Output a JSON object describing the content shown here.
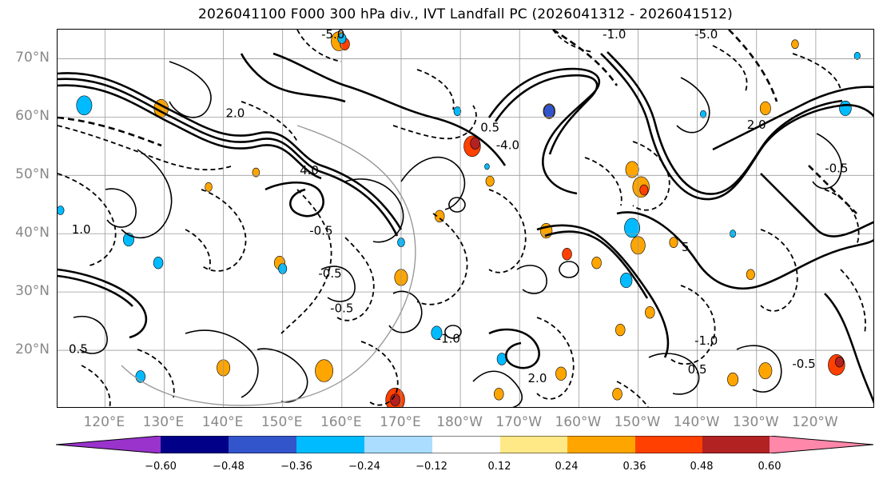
{
  "title": "2026041100 F000 300 hPa div., IVT Landfall PC (2026041312 - 2026041512)",
  "map": {
    "projection": "PlateCarree",
    "lon_range": [
      112,
      250
    ],
    "lat_range": [
      10,
      75
    ],
    "lat_labels": [
      {
        "lat": 70,
        "text": "70°N"
      },
      {
        "lat": 60,
        "text": "60°N"
      },
      {
        "lat": 50,
        "text": "50°N"
      },
      {
        "lat": 40,
        "text": "40°N"
      },
      {
        "lat": 30,
        "text": "30°N"
      },
      {
        "lat": 20,
        "text": "20°N"
      }
    ],
    "lon_labels": [
      {
        "lon": 120,
        "text": "120°E"
      },
      {
        "lon": 130,
        "text": "130°E"
      },
      {
        "lon": 140,
        "text": "140°E"
      },
      {
        "lon": 150,
        "text": "150°E"
      },
      {
        "lon": 160,
        "text": "160°E"
      },
      {
        "lon": 170,
        "text": "170°E"
      },
      {
        "lon": 180,
        "text": "180°W"
      },
      {
        "lon": 190,
        "text": "170°W"
      },
      {
        "lon": 200,
        "text": "160°W"
      },
      {
        "lon": 210,
        "text": "150°W"
      },
      {
        "lon": 220,
        "text": "140°W"
      },
      {
        "lon": 230,
        "text": "130°W"
      },
      {
        "lon": 240,
        "text": "120°W"
      }
    ],
    "grid_lons": [
      120,
      130,
      140,
      150,
      160,
      170,
      180,
      190,
      200,
      210,
      220,
      230,
      240
    ],
    "grid_lats": [
      20,
      30,
      40,
      50,
      60,
      70
    ],
    "contour_labels": [
      {
        "lon": 158.5,
        "lat": 73.5,
        "text": "-5.0"
      },
      {
        "lon": 154.5,
        "lat": 50.2,
        "text": "4.0"
      },
      {
        "lon": 158,
        "lat": 32.5,
        "text": "-0.5"
      },
      {
        "lon": 160,
        "lat": 26.5,
        "text": "-0.5"
      },
      {
        "lon": 156.5,
        "lat": 39.8,
        "text": "-0.5"
      },
      {
        "lon": 185,
        "lat": 57.5,
        "text": "0.5"
      },
      {
        "lon": 188,
        "lat": 54.5,
        "text": "-4.0"
      },
      {
        "lon": 193,
        "lat": 14.5,
        "text": "2.0"
      },
      {
        "lon": 178,
        "lat": 21.3,
        "text": "-1.0"
      },
      {
        "lon": 221.5,
        "lat": 21,
        "text": "-1.0"
      },
      {
        "lon": 220,
        "lat": 16,
        "text": "0.5"
      },
      {
        "lon": 221.5,
        "lat": 73.5,
        "text": "-5.0"
      },
      {
        "lon": 243.5,
        "lat": 50.5,
        "text": "-0.5"
      },
      {
        "lon": 115.5,
        "lat": 19.5,
        "text": "0.5"
      },
      {
        "lon": 116,
        "lat": 40,
        "text": "1.0"
      },
      {
        "lon": 206,
        "lat": 73.5,
        "text": "-1.0"
      },
      {
        "lon": 238,
        "lat": 17,
        "text": "-0.5"
      },
      {
        "lon": 218,
        "lat": 37,
        "text": "5"
      },
      {
        "lon": 142,
        "lat": 60,
        "text": "2.0"
      },
      {
        "lon": 230,
        "lat": 58,
        "text": "2.0"
      }
    ],
    "warm_blobs": [
      {
        "lon": 129.5,
        "lat": 61.5,
        "r": 1.2,
        "value": 0.3
      },
      {
        "lon": 159.5,
        "lat": 73.0,
        "r": 1.3,
        "value": 0.32
      },
      {
        "lon": 160.5,
        "lat": 72.5,
        "r": 0.8,
        "value": 0.42
      },
      {
        "lon": 182.0,
        "lat": 55.0,
        "r": 1.4,
        "value": 0.38
      },
      {
        "lon": 182.5,
        "lat": 55.5,
        "r": 0.8,
        "value": 0.5
      },
      {
        "lon": 195.0,
        "lat": 61.0,
        "r": 1.0,
        "value": 0.3
      },
      {
        "lon": 209.0,
        "lat": 51.0,
        "r": 1.1,
        "value": 0.34
      },
      {
        "lon": 210.5,
        "lat": 48.0,
        "r": 1.4,
        "value": 0.3
      },
      {
        "lon": 211.0,
        "lat": 47.5,
        "r": 0.7,
        "value": 0.44
      },
      {
        "lon": 176.5,
        "lat": 43.0,
        "r": 0.8,
        "value": 0.26
      },
      {
        "lon": 194.5,
        "lat": 40.5,
        "r": 1.0,
        "value": 0.32
      },
      {
        "lon": 198.0,
        "lat": 36.5,
        "r": 0.8,
        "value": 0.36
      },
      {
        "lon": 203.0,
        "lat": 35.0,
        "r": 0.8,
        "value": 0.28
      },
      {
        "lon": 210.0,
        "lat": 38.0,
        "r": 1.2,
        "value": 0.3
      },
      {
        "lon": 216.0,
        "lat": 38.5,
        "r": 0.7,
        "value": 0.28
      },
      {
        "lon": 170.0,
        "lat": 32.5,
        "r": 1.1,
        "value": 0.3
      },
      {
        "lon": 185.0,
        "lat": 49.0,
        "r": 0.7,
        "value": 0.26
      },
      {
        "lon": 149.5,
        "lat": 35.0,
        "r": 0.9,
        "value": 0.26
      },
      {
        "lon": 157.0,
        "lat": 16.5,
        "r": 1.5,
        "value": 0.34
      },
      {
        "lon": 169.0,
        "lat": 11.5,
        "r": 1.6,
        "value": 0.4
      },
      {
        "lon": 169.0,
        "lat": 11.5,
        "r": 0.8,
        "value": 0.52
      },
      {
        "lon": 140.0,
        "lat": 17.0,
        "r": 1.1,
        "value": 0.32
      },
      {
        "lon": 186.5,
        "lat": 12.5,
        "r": 0.8,
        "value": 0.26
      },
      {
        "lon": 197.0,
        "lat": 16.0,
        "r": 0.9,
        "value": 0.3
      },
      {
        "lon": 206.5,
        "lat": 12.5,
        "r": 0.8,
        "value": 0.28
      },
      {
        "lon": 207.0,
        "lat": 23.5,
        "r": 0.8,
        "value": 0.26
      },
      {
        "lon": 226.0,
        "lat": 15.0,
        "r": 0.9,
        "value": 0.3
      },
      {
        "lon": 231.5,
        "lat": 16.5,
        "r": 1.1,
        "value": 0.34
      },
      {
        "lon": 243.5,
        "lat": 17.5,
        "r": 1.4,
        "value": 0.4
      },
      {
        "lon": 244.0,
        "lat": 18.0,
        "r": 0.7,
        "value": 0.5
      },
      {
        "lon": 229.0,
        "lat": 33.0,
        "r": 0.7,
        "value": 0.28
      },
      {
        "lon": 231.5,
        "lat": 61.5,
        "r": 0.9,
        "value": 0.3
      },
      {
        "lon": 236.5,
        "lat": 72.5,
        "r": 0.6,
        "value": 0.28
      },
      {
        "lon": 137.5,
        "lat": 48.0,
        "r": 0.6,
        "value": 0.28
      },
      {
        "lon": 145.5,
        "lat": 50.5,
        "r": 0.6,
        "value": 0.26
      },
      {
        "lon": 212.0,
        "lat": 26.5,
        "r": 0.8,
        "value": 0.3
      }
    ],
    "cold_blobs": [
      {
        "lon": 116.5,
        "lat": 62.0,
        "r": 1.3,
        "value": -0.3
      },
      {
        "lon": 195.0,
        "lat": 61.0,
        "r": 0.9,
        "value": -0.4
      },
      {
        "lon": 179.5,
        "lat": 61.0,
        "r": 0.6,
        "value": -0.3
      },
      {
        "lon": 209.0,
        "lat": 41.0,
        "r": 1.3,
        "value": -0.3
      },
      {
        "lon": 208.0,
        "lat": 32.0,
        "r": 1.0,
        "value": -0.3
      },
      {
        "lon": 170.0,
        "lat": 38.5,
        "r": 0.6,
        "value": -0.28
      },
      {
        "lon": 176.0,
        "lat": 23.0,
        "r": 0.9,
        "value": -0.3
      },
      {
        "lon": 187.0,
        "lat": 18.5,
        "r": 0.8,
        "value": -0.3
      },
      {
        "lon": 124.0,
        "lat": 39.0,
        "r": 0.9,
        "value": -0.3
      },
      {
        "lon": 150.0,
        "lat": 34.0,
        "r": 0.7,
        "value": -0.28
      },
      {
        "lon": 129.0,
        "lat": 35.0,
        "r": 0.8,
        "value": -0.3
      },
      {
        "lon": 126.0,
        "lat": 15.5,
        "r": 0.8,
        "value": -0.3
      },
      {
        "lon": 160.0,
        "lat": 73.5,
        "r": 0.7,
        "value": -0.26
      },
      {
        "lon": 245.0,
        "lat": 61.5,
        "r": 1.0,
        "value": -0.3
      },
      {
        "lon": 112.5,
        "lat": 44.0,
        "r": 0.6,
        "value": -0.28
      },
      {
        "lon": 221.0,
        "lat": 60.5,
        "r": 0.5,
        "value": -0.3
      },
      {
        "lon": 226.0,
        "lat": 40.0,
        "r": 0.5,
        "value": -0.28
      },
      {
        "lon": 184.5,
        "lat": 51.5,
        "r": 0.4,
        "value": -0.26
      },
      {
        "lon": 247.0,
        "lat": 70.5,
        "r": 0.5,
        "value": -0.28
      }
    ]
  },
  "colorbar": {
    "levels": [
      -0.72,
      -0.6,
      -0.48,
      -0.36,
      -0.24,
      -0.12,
      0.12,
      0.24,
      0.36,
      0.48,
      0.6,
      0.72
    ],
    "colors": [
      "#9933cc",
      "#000088",
      "#3355cc",
      "#00bbff",
      "#aaddff",
      "#ffffff",
      "#ffe987",
      "#ffa500",
      "#ff4000",
      "#b22222",
      "#ff88aa"
    ],
    "under_color": "#9933cc",
    "over_color": "#ff88aa",
    "tick_labels": [
      "−0.60",
      "−0.48",
      "−0.36",
      "−0.24",
      "−0.12",
      "0.12",
      "0.24",
      "0.36",
      "0.48",
      "0.60"
    ]
  }
}
